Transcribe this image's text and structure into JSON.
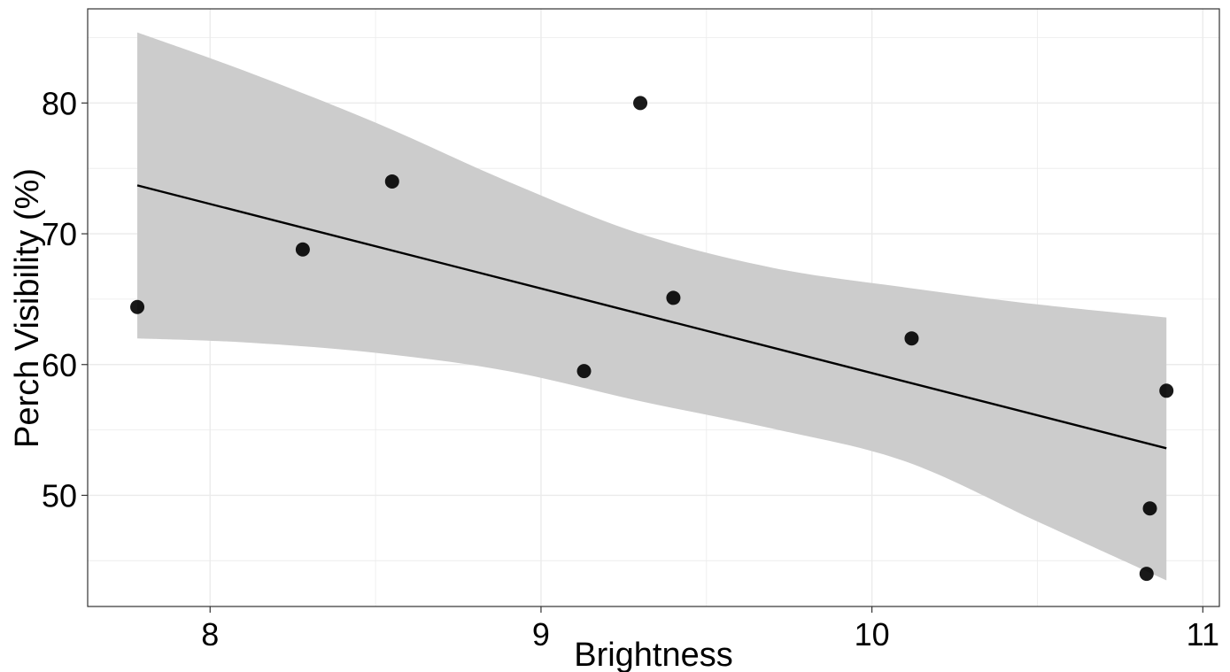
{
  "chart_data": {
    "type": "scatter",
    "xlabel": "Brightness",
    "ylabel": "Perch Visibility (%)",
    "xlim": [
      7.63,
      11.05
    ],
    "ylim": [
      41.5,
      87.2
    ],
    "x_ticks": [
      8,
      9,
      10,
      11
    ],
    "y_ticks": [
      50,
      60,
      70,
      80
    ],
    "grid": true,
    "points": [
      {
        "x": 7.78,
        "y": 64.4
      },
      {
        "x": 8.28,
        "y": 68.8
      },
      {
        "x": 8.55,
        "y": 74.0
      },
      {
        "x": 9.13,
        "y": 59.5
      },
      {
        "x": 9.3,
        "y": 80.0
      },
      {
        "x": 9.4,
        "y": 65.1
      },
      {
        "x": 10.12,
        "y": 62.0
      },
      {
        "x": 10.83,
        "y": 44.0
      },
      {
        "x": 10.84,
        "y": 49.0
      },
      {
        "x": 10.89,
        "y": 58.0
      }
    ],
    "trend_line": {
      "x": [
        7.78,
        10.89
      ],
      "y": [
        73.7,
        53.6
      ]
    },
    "confidence_band": {
      "x": [
        7.78,
        8.1,
        8.5,
        8.9,
        9.3,
        9.7,
        10.1,
        10.5,
        10.89
      ],
      "upper": [
        85.4,
        82.5,
        78.5,
        74.0,
        70.0,
        67.4,
        65.9,
        64.6,
        63.6
      ],
      "lower": [
        62.0,
        61.7,
        60.9,
        59.5,
        57.2,
        55.1,
        52.6,
        48.0,
        43.5
      ]
    },
    "colors": {
      "points": "#000000",
      "line": "#000000",
      "band": "#cccccc",
      "grid": "#ebebeb",
      "border": "#333333"
    }
  }
}
